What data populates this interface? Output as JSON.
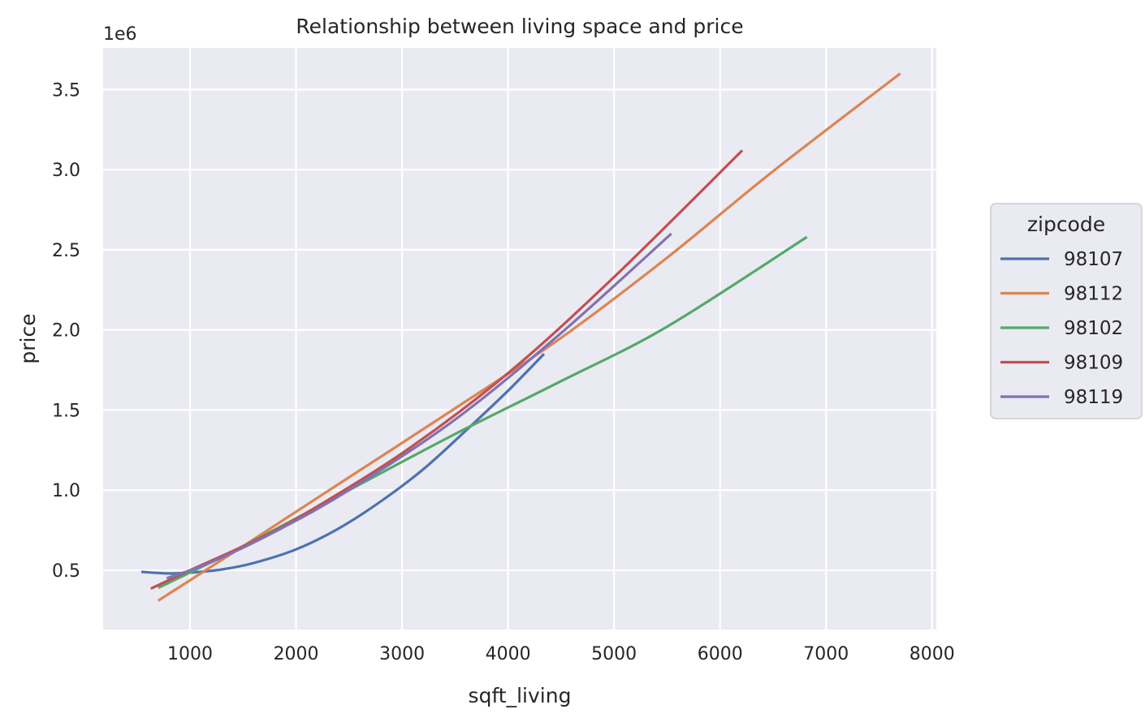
{
  "chart_data": {
    "type": "line",
    "title": "Relationship between living space and price",
    "xlabel": "sqft_living",
    "ylabel": "price",
    "y_offset_label": "1e6",
    "xlim": [
      180,
      8040
    ],
    "ylim": [
      0.13,
      3.76
    ],
    "x_ticks": [
      1000,
      2000,
      3000,
      4000,
      5000,
      6000,
      7000,
      8000
    ],
    "x_tick_labels": [
      "1000",
      "2000",
      "3000",
      "4000",
      "5000",
      "6000",
      "7000",
      "8000"
    ],
    "y_ticks": [
      0.5,
      1.0,
      1.5,
      2.0,
      2.5,
      3.0,
      3.5
    ],
    "y_tick_labels": [
      "0.5",
      "1.0",
      "1.5",
      "2.0",
      "2.5",
      "3.0",
      "3.5"
    ],
    "grid": true,
    "background": "#eaeaf2",
    "legend": {
      "title": "zipcode",
      "placement": "outside-right"
    },
    "series": [
      {
        "name": "98107",
        "color": "#4c72b0",
        "x": [
          540,
          800,
          1000,
          1300,
          1600,
          2000,
          2400,
          2800,
          3200,
          3600,
          4000,
          4340
        ],
        "y": [
          0.49,
          0.48,
          0.485,
          0.505,
          0.545,
          0.63,
          0.76,
          0.93,
          1.13,
          1.37,
          1.62,
          1.85
        ]
      },
      {
        "name": "98112",
        "color": "#dd8452",
        "x": [
          700,
          1500,
          2500,
          3500,
          4500,
          5500,
          6500,
          7700
        ],
        "y": [
          0.31,
          0.65,
          1.08,
          1.51,
          1.95,
          2.45,
          2.99,
          3.6
        ]
      },
      {
        "name": "98102",
        "color": "#55a868",
        "x": [
          700,
          1500,
          2500,
          3500,
          4500,
          5500,
          6820
        ],
        "y": [
          0.39,
          0.65,
          1.0,
          1.35,
          1.68,
          2.02,
          2.58
        ]
      },
      {
        "name": "98109",
        "color": "#c44e52",
        "x": [
          630,
          1000,
          1500,
          2000,
          3000,
          4000,
          5000,
          6210
        ],
        "y": [
          0.385,
          0.5,
          0.65,
          0.82,
          1.23,
          1.73,
          2.33,
          3.12
        ]
      },
      {
        "name": "98119",
        "color": "#8172b3",
        "x": [
          780,
          1200,
          1800,
          2500,
          3500,
          4500,
          5540
        ],
        "y": [
          0.45,
          0.55,
          0.74,
          1.0,
          1.44,
          1.98,
          2.6
        ]
      }
    ]
  }
}
